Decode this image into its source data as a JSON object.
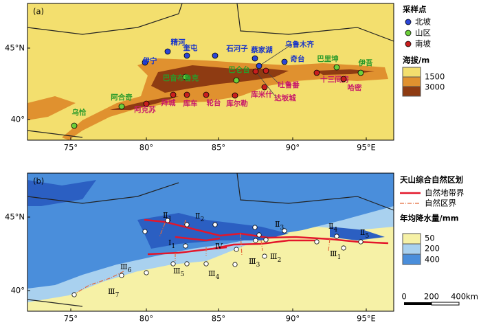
{
  "panel_a": {
    "label": "(a)",
    "legend": {
      "title": "采样点",
      "items": [
        "北坡",
        "山区",
        "南坡"
      ],
      "elevation_title": "海拔/m",
      "elevation_labels": [
        "1500",
        "3000"
      ]
    },
    "points": [
      {
        "name": "精河",
        "group": "北坡"
      },
      {
        "name": "奎屯",
        "group": "北坡"
      },
      {
        "name": "石河子",
        "group": "北坡"
      },
      {
        "name": "蔡家湖",
        "group": "北坡"
      },
      {
        "name": "乌鲁木齐",
        "group": "北坡"
      },
      {
        "name": "奇台",
        "group": "北坡"
      },
      {
        "name": "伊宁",
        "group": "北坡"
      },
      {
        "name": "巴音布鲁克",
        "group": "山区"
      },
      {
        "name": "巴仑台",
        "group": "山区"
      },
      {
        "name": "巴里坤",
        "group": "山区"
      },
      {
        "name": "伊吾",
        "group": "山区"
      },
      {
        "name": "阿合奇",
        "group": "山区"
      },
      {
        "name": "乌恰",
        "group": "山区"
      },
      {
        "name": "阿克苏",
        "group": "南坡"
      },
      {
        "name": "拜城",
        "group": "南坡"
      },
      {
        "name": "库车",
        "group": "南坡"
      },
      {
        "name": "轮台",
        "group": "南坡"
      },
      {
        "name": "库尔勒",
        "group": "南坡"
      },
      {
        "name": "库米什",
        "group": "南坡"
      },
      {
        "name": "吐鲁番",
        "group": "南坡"
      },
      {
        "name": "达坂城",
        "group": "南坡"
      },
      {
        "name": "十三间房",
        "group": "南坡"
      },
      {
        "name": "哈密",
        "group": "南坡"
      }
    ]
  },
  "panel_b": {
    "label": "(b)",
    "legend": {
      "title": "天山综合自然区划",
      "zone_boundary": "自然地带界",
      "region_boundary": "自然区界",
      "precip_title": "年均降水量/mm",
      "precip_labels": [
        "50",
        "200",
        "400"
      ]
    },
    "regions": [
      {
        "numeral": "Ⅱ",
        "sub": "1"
      },
      {
        "numeral": "Ⅱ",
        "sub": "2"
      },
      {
        "numeral": "Ⅱ",
        "sub": "3"
      },
      {
        "numeral": "Ⅱ",
        "sub": "4"
      },
      {
        "numeral": "Ⅱ",
        "sub": "5"
      },
      {
        "numeral": "Ⅰ",
        "sub": "1"
      },
      {
        "numeral": "Ⅳ",
        "sub": ""
      },
      {
        "numeral": "Ⅲ",
        "sub": "1"
      },
      {
        "numeral": "Ⅲ",
        "sub": "2"
      },
      {
        "numeral": "Ⅲ",
        "sub": "3"
      },
      {
        "numeral": "Ⅲ",
        "sub": "4"
      },
      {
        "numeral": "Ⅲ",
        "sub": "5"
      },
      {
        "numeral": "Ⅲ",
        "sub": "6"
      },
      {
        "numeral": "Ⅲ",
        "sub": "7"
      }
    ],
    "scale_bar": [
      "0",
      "200",
      "400km"
    ]
  },
  "lon_labels": [
    "75°",
    "80°",
    "85°",
    "90°",
    "95°E"
  ],
  "lat_labels": [
    "40°",
    "45°N"
  ]
}
